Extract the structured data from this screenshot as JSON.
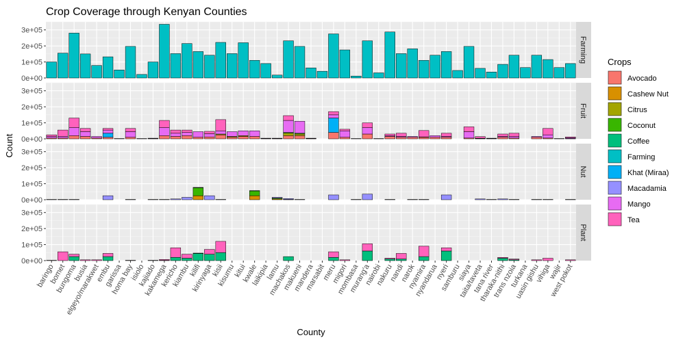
{
  "chart_data": {
    "type": "bar",
    "title": "Crop Coverage through Kenyan Counties",
    "xlabel": "County",
    "ylabel": "Count",
    "ylim": [
      0,
      350000
    ],
    "yticks": [
      0,
      100000,
      200000,
      300000
    ],
    "ytick_labels": [
      "0e+00",
      "1e+05",
      "2e+05",
      "3e+05"
    ],
    "grid": true,
    "legend_position": "right",
    "legend_title": "Crops",
    "crops": [
      {
        "name": "Avocado",
        "color": "#F8766D"
      },
      {
        "name": "Cashew Nut",
        "color": "#D89000"
      },
      {
        "name": "Citrus",
        "color": "#A3A500"
      },
      {
        "name": "Coconut",
        "color": "#39B600"
      },
      {
        "name": "Coffee",
        "color": "#00BF7D"
      },
      {
        "name": "Farming",
        "color": "#00BFC4"
      },
      {
        "name": "Khat (Miraa)",
        "color": "#00B0F6"
      },
      {
        "name": "Macadamia",
        "color": "#9590FF"
      },
      {
        "name": "Mango",
        "color": "#E76BF3"
      },
      {
        "name": "Tea",
        "color": "#FF62BC"
      }
    ],
    "categories": [
      "baringo",
      "bomet",
      "bungoma",
      "busia",
      "elgeyo/marakwet",
      "embu",
      "garissa",
      "homa bay",
      "isiolo",
      "kajiado",
      "kakamega",
      "kericho",
      "kiambu",
      "kilifi",
      "kirinyaga",
      "kisii",
      "kisumu",
      "kitui",
      "kwale",
      "laikipia",
      "lamu",
      "machakos",
      "makueni",
      "mandera",
      "marsabit",
      "meru",
      "migori",
      "mombasa",
      "murang'a",
      "nairobi",
      "nakuru",
      "nandi",
      "narok",
      "nyamira",
      "nyandarua",
      "nyeri",
      "samburu",
      "siaya",
      "taita/taveta",
      "tana river",
      "tharaka-nithi",
      "trans nzoia",
      "turkana",
      "uasin gishu",
      "vihiga",
      "wajir",
      "west pokot"
    ],
    "facets": [
      {
        "name": "Farming",
        "series": [
          {
            "name": "Farming",
            "values": [
              100000,
              155000,
              280000,
              150000,
              78000,
              132000,
              50000,
              197000,
              22000,
              100000,
              335000,
              152000,
              215000,
              165000,
              142000,
              222000,
              152000,
              220000,
              110000,
              90000,
              18000,
              232000,
              197000,
              63000,
              42000,
              275000,
              175000,
              12000,
              232000,
              32000,
              287000,
              152000,
              182000,
              110000,
              142000,
              165000,
              47000,
              197000,
              60000,
              37000,
              85000,
              142000,
              65000,
              142000,
              115000,
              65000,
              90000
            ]
          }
        ]
      },
      {
        "name": "Fruit",
        "series": [
          {
            "name": "Avocado",
            "values": [
              5000,
              5000,
              20000,
              15000,
              5000,
              10000,
              0,
              10000,
              0,
              2000,
              20000,
              15000,
              20000,
              10000,
              12000,
              25000,
              10000,
              15000,
              15000,
              2000,
              2000,
              20000,
              20000,
              2000,
              0,
              40000,
              10000,
              0,
              30000,
              0,
              15000,
              10000,
              10000,
              10000,
              10000,
              10000,
              0,
              5000,
              2000,
              2000,
              10000,
              5000,
              0,
              10000,
              5000,
              2000,
              2000
            ]
          },
          {
            "name": "Citrus",
            "values": [
              0,
              0,
              0,
              0,
              0,
              0,
              0,
              0,
              0,
              0,
              0,
              0,
              0,
              0,
              0,
              5000,
              5000,
              5000,
              0,
              0,
              0,
              15000,
              10000,
              0,
              0,
              0,
              0,
              0,
              0,
              0,
              0,
              0,
              0,
              0,
              0,
              0,
              0,
              0,
              0,
              0,
              0,
              0,
              0,
              0,
              0,
              0,
              0
            ]
          },
          {
            "name": "Coconut",
            "values": [
              0,
              0,
              0,
              0,
              0,
              0,
              0,
              0,
              0,
              0,
              0,
              0,
              0,
              0,
              0,
              0,
              0,
              0,
              0,
              0,
              0,
              5000,
              5000,
              0,
              0,
              0,
              0,
              0,
              0,
              0,
              0,
              0,
              0,
              0,
              0,
              0,
              0,
              0,
              0,
              0,
              0,
              0,
              0,
              0,
              0,
              0,
              0
            ]
          },
          {
            "name": "Khat (Miraa)",
            "values": [
              0,
              0,
              0,
              0,
              0,
              25000,
              0,
              0,
              0,
              0,
              0,
              0,
              0,
              0,
              0,
              0,
              0,
              0,
              0,
              0,
              0,
              0,
              0,
              0,
              0,
              90000,
              0,
              0,
              0,
              0,
              0,
              0,
              0,
              0,
              0,
              0,
              0,
              0,
              0,
              0,
              0,
              0,
              0,
              0,
              0,
              0,
              0
            ]
          },
          {
            "name": "Mango",
            "values": [
              10000,
              10000,
              50000,
              30000,
              10000,
              20000,
              2000,
              35000,
              2000,
              2000,
              50000,
              20000,
              20000,
              35000,
              20000,
              20000,
              30000,
              30000,
              35000,
              2000,
              2000,
              75000,
              75000,
              2000,
              0,
              20000,
              40000,
              2000,
              40000,
              2000,
              5000,
              5000,
              5000,
              2000,
              10000,
              5000,
              0,
              40000,
              2000,
              2000,
              5000,
              10000,
              0,
              5000,
              20000,
              0,
              5000
            ]
          },
          {
            "name": "Tea",
            "values": [
              10000,
              40000,
              60000,
              20000,
              0,
              10000,
              0,
              20000,
              0,
              0,
              45000,
              20000,
              15000,
              0,
              15000,
              70000,
              0,
              0,
              0,
              0,
              0,
              30000,
              0,
              0,
              0,
              20000,
              10000,
              0,
              30000,
              0,
              10000,
              20000,
              0,
              40000,
              0,
              20000,
              0,
              30000,
              10000,
              0,
              15000,
              20000,
              0,
              0,
              40000,
              0,
              5000
            ]
          }
        ]
      },
      {
        "name": "Nut",
        "series": [
          {
            "name": "Cashew Nut",
            "values": [
              0,
              0,
              0,
              0,
              0,
              0,
              0,
              0,
              0,
              0,
              0,
              0,
              0,
              25000,
              0,
              0,
              0,
              0,
              25000,
              0,
              5000,
              2000,
              0,
              0,
              0,
              0,
              0,
              0,
              0,
              0,
              0,
              0,
              0,
              0,
              0,
              0,
              0,
              0,
              0,
              0,
              0,
              0,
              0,
              0,
              0,
              0,
              0
            ]
          },
          {
            "name": "Coconut",
            "values": [
              0,
              0,
              0,
              0,
              0,
              0,
              0,
              0,
              0,
              0,
              0,
              0,
              0,
              50000,
              0,
              0,
              0,
              0,
              30000,
              0,
              5000,
              0,
              0,
              0,
              0,
              0,
              0,
              0,
              0,
              0,
              0,
              0,
              0,
              0,
              0,
              0,
              0,
              0,
              0,
              0,
              0,
              0,
              0,
              0,
              0,
              0,
              0
            ]
          },
          {
            "name": "Macadamia",
            "values": [
              2000,
              2000,
              2000,
              0,
              0,
              25000,
              0,
              2000,
              0,
              2000,
              2000,
              5000,
              15000,
              2000,
              25000,
              2000,
              0,
              0,
              2000,
              0,
              5000,
              5000,
              2000,
              0,
              0,
              30000,
              0,
              2000,
              35000,
              0,
              2000,
              0,
              2000,
              2000,
              0,
              30000,
              0,
              0,
              5000,
              2000,
              5000,
              2000,
              0,
              2000,
              2000,
              0,
              2000
            ]
          }
        ]
      },
      {
        "name": "Plant",
        "series": [
          {
            "name": "Coffee",
            "values": [
              0,
              0,
              25000,
              0,
              0,
              25000,
              0,
              0,
              0,
              2000,
              2000,
              20000,
              15000,
              45000,
              40000,
              50000,
              0,
              0,
              0,
              0,
              0,
              25000,
              0,
              0,
              0,
              20000,
              0,
              0,
              60000,
              0,
              10000,
              10000,
              0,
              25000,
              0,
              60000,
              0,
              0,
              0,
              0,
              15000,
              5000,
              0,
              0,
              0,
              0,
              0
            ]
          },
          {
            "name": "Tea",
            "values": [
              2000,
              55000,
              15000,
              5000,
              5000,
              20000,
              0,
              2000,
              0,
              0,
              5000,
              60000,
              25000,
              2000,
              30000,
              70000,
              0,
              0,
              0,
              0,
              0,
              0,
              0,
              0,
              0,
              35000,
              5000,
              0,
              45000,
              0,
              5000,
              35000,
              0,
              65000,
              0,
              20000,
              0,
              0,
              0,
              0,
              5000,
              5000,
              0,
              5000,
              15000,
              0,
              5000
            ]
          }
        ]
      }
    ]
  }
}
